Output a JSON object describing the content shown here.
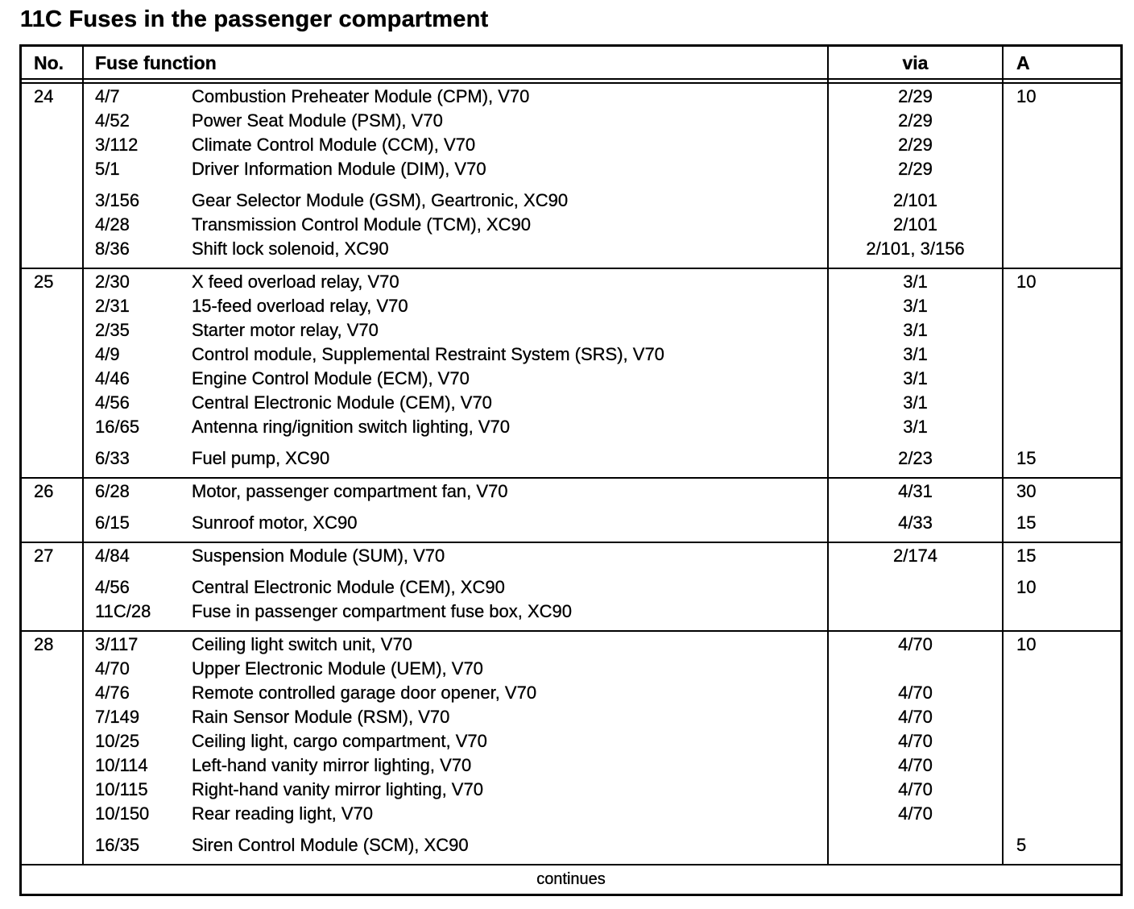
{
  "title": "11C Fuses in the passenger compartment",
  "colors": {
    "ink": "#000000",
    "paper": "#ffffff"
  },
  "table": {
    "headers": {
      "no": "No.",
      "function": "Fuse function",
      "via": "via",
      "amps": "A"
    },
    "footer": "continues",
    "blocks": [
      {
        "no": "24",
        "groups": [
          {
            "entries": [
              {
                "id": "4/7",
                "desc": "Combustion Preheater Module (CPM), V70",
                "via": "2/29",
                "a": "10"
              },
              {
                "id": "4/52",
                "desc": "Power Seat Module (PSM), V70",
                "via": "2/29",
                "a": ""
              },
              {
                "id": "3/112",
                "desc": "Climate Control Module (CCM), V70",
                "via": "2/29",
                "a": ""
              },
              {
                "id": "5/1",
                "desc": "Driver Information Module (DIM), V70",
                "via": "2/29",
                "a": ""
              }
            ]
          },
          {
            "entries": [
              {
                "id": "3/156",
                "desc": "Gear Selector Module (GSM), Geartronic, XC90",
                "via": "2/101",
                "a": ""
              },
              {
                "id": "4/28",
                "desc": "Transmission Control Module (TCM), XC90",
                "via": "2/101",
                "a": ""
              },
              {
                "id": "8/36",
                "desc": "Shift lock solenoid, XC90",
                "via": "2/101, 3/156",
                "a": ""
              }
            ]
          }
        ]
      },
      {
        "no": "25",
        "groups": [
          {
            "entries": [
              {
                "id": "2/30",
                "desc": "X feed overload relay, V70",
                "via": "3/1",
                "a": "10"
              },
              {
                "id": "2/31",
                "desc": "15-feed overload relay, V70",
                "via": "3/1",
                "a": ""
              },
              {
                "id": "2/35",
                "desc": "Starter motor relay, V70",
                "via": "3/1",
                "a": ""
              },
              {
                "id": "4/9",
                "desc": "Control module, Supplemental Restraint System (SRS), V70",
                "via": "3/1",
                "a": ""
              },
              {
                "id": "4/46",
                "desc": "Engine Control Module (ECM), V70",
                "via": "3/1",
                "a": ""
              },
              {
                "id": "4/56",
                "desc": "Central Electronic Module (CEM), V70",
                "via": "3/1",
                "a": ""
              },
              {
                "id": "16/65",
                "desc": "Antenna ring/ignition switch lighting, V70",
                "via": "3/1",
                "a": ""
              }
            ]
          },
          {
            "entries": [
              {
                "id": "6/33",
                "desc": "Fuel pump, XC90",
                "via": "2/23",
                "a": "15"
              }
            ]
          }
        ]
      },
      {
        "no": "26",
        "groups": [
          {
            "entries": [
              {
                "id": "6/28",
                "desc": "Motor, passenger compartment fan, V70",
                "via": "4/31",
                "a": "30"
              }
            ]
          },
          {
            "entries": [
              {
                "id": "6/15",
                "desc": "Sunroof motor, XC90",
                "via": "4/33",
                "a": "15"
              }
            ]
          }
        ]
      },
      {
        "no": "27",
        "groups": [
          {
            "entries": [
              {
                "id": "4/84",
                "desc": "Suspension Module (SUM), V70",
                "via": "2/174",
                "a": "15"
              }
            ]
          },
          {
            "entries": [
              {
                "id": "4/56",
                "desc": "Central Electronic Module (CEM), XC90",
                "via": "",
                "a": "10"
              },
              {
                "id": "11C/28",
                "desc": "Fuse in passenger compartment fuse box, XC90",
                "via": "",
                "a": ""
              }
            ]
          }
        ]
      },
      {
        "no": "28",
        "groups": [
          {
            "entries": [
              {
                "id": "3/117",
                "desc": "Ceiling light switch unit, V70",
                "via": "4/70",
                "a": "10"
              },
              {
                "id": "4/70",
                "desc": "Upper Electronic Module (UEM), V70",
                "via": "",
                "a": ""
              },
              {
                "id": "4/76",
                "desc": "Remote controlled garage door opener, V70",
                "via": "4/70",
                "a": ""
              },
              {
                "id": "7/149",
                "desc": "Rain Sensor Module (RSM), V70",
                "via": "4/70",
                "a": ""
              },
              {
                "id": "10/25",
                "desc": "Ceiling light, cargo compartment, V70",
                "via": "4/70",
                "a": ""
              },
              {
                "id": "10/114",
                "desc": "Left-hand vanity mirror lighting, V70",
                "via": "4/70",
                "a": ""
              },
              {
                "id": "10/115",
                "desc": "Right-hand vanity mirror lighting, V70",
                "via": "4/70",
                "a": ""
              },
              {
                "id": "10/150",
                "desc": "Rear reading light, V70",
                "via": "4/70",
                "a": ""
              }
            ]
          },
          {
            "entries": [
              {
                "id": "16/35",
                "desc": "Siren Control Module (SCM), XC90",
                "via": "",
                "a": "5"
              }
            ]
          }
        ]
      }
    ]
  }
}
